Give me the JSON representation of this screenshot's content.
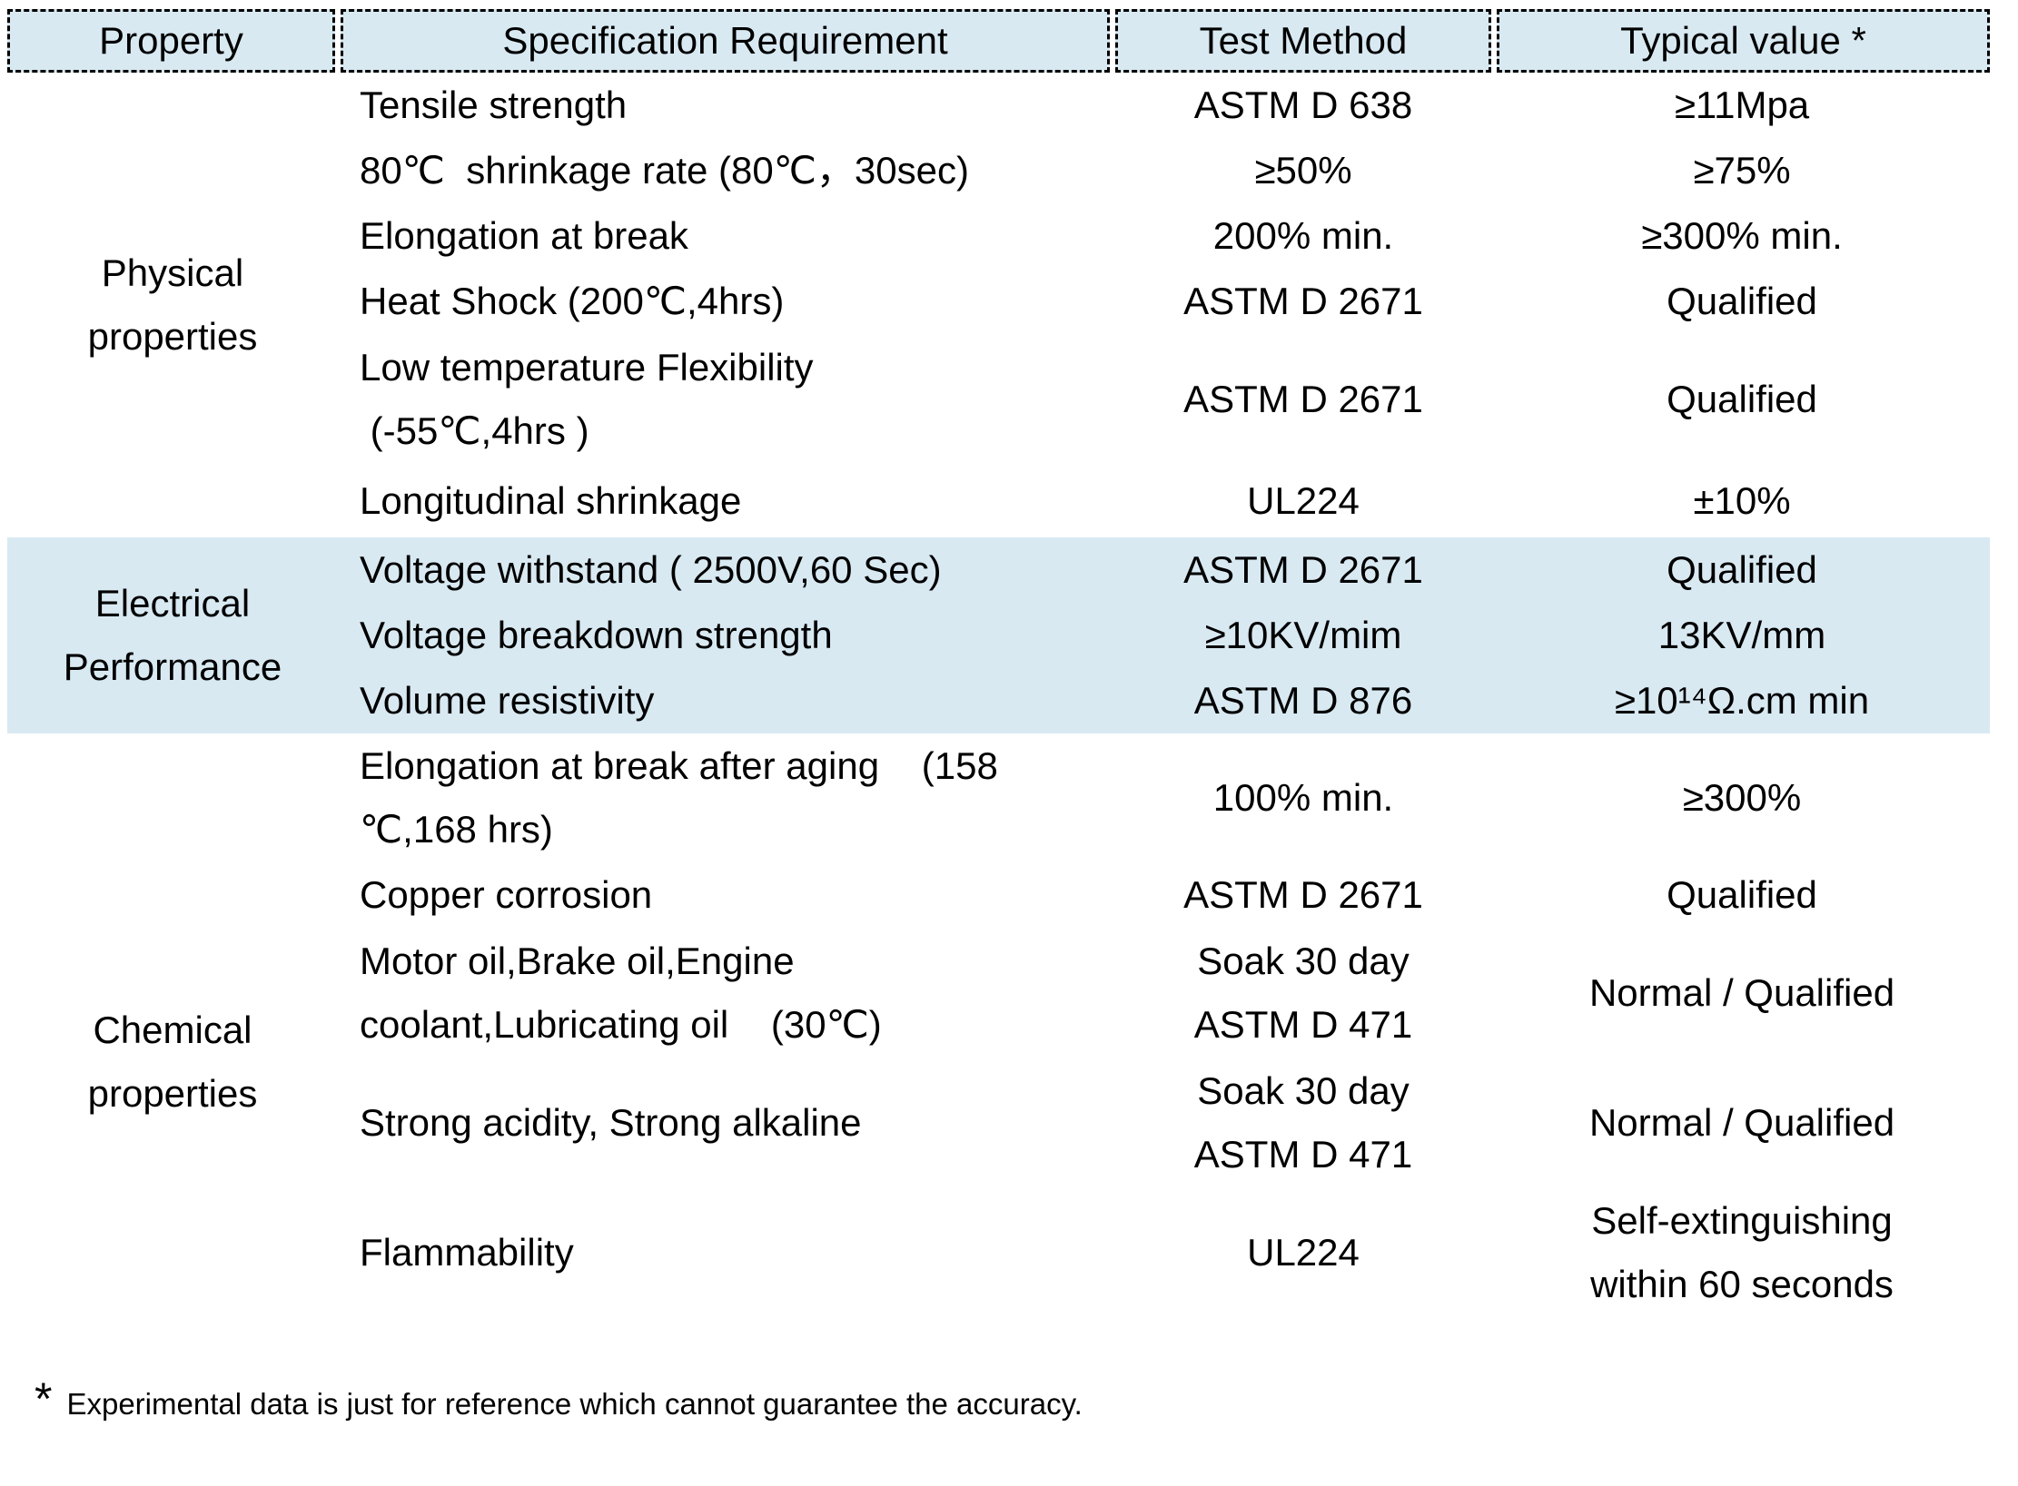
{
  "colors": {
    "accent_bg": "#d8e9f2",
    "border": "#000000",
    "text": "#000000"
  },
  "header": {
    "property": "Property",
    "spec": "Specification Requirement",
    "test": "Test Method",
    "typical": "Typical value *"
  },
  "sections": {
    "physical": {
      "label": "Physical\nproperties",
      "rows": [
        {
          "spec": "Tensile strength",
          "test": "ASTM D 638",
          "typical": "≥11Mpa"
        },
        {
          "spec": "80℃  shrinkage rate (80℃，30sec)",
          "test": "≥50%",
          "typical": "≥75%"
        },
        {
          "spec": "Elongation at break",
          "test": "200% min.",
          "typical": "≥300% min."
        },
        {
          "spec": "Heat Shock (200℃,4hrs)",
          "test": "ASTM D 2671",
          "typical": "Qualified"
        },
        {
          "spec": "Low temperature Flexibility\n (-55℃,4hrs )",
          "test": "ASTM D 2671",
          "typical": "Qualified"
        },
        {
          "spec": "Longitudinal shrinkage",
          "test": "UL224",
          "typical": "±10%"
        }
      ]
    },
    "electrical": {
      "label": "Electrical\nPerformance",
      "rows": [
        {
          "spec": "Voltage withstand ( 2500V,60 Sec)",
          "test": "ASTM D 2671",
          "typical": "Qualified"
        },
        {
          "spec": "Voltage breakdown strength",
          "test": "≥10KV/mim",
          "typical": "13KV/mm"
        },
        {
          "spec": "Volume resistivity",
          "test": "ASTM D 876",
          "typical": "≥10¹⁴Ω.cm min"
        }
      ]
    },
    "chemical": {
      "label": "Chemical\nproperties",
      "rows": [
        {
          "spec": "Elongation at break after aging    (158\n℃,168 hrs)",
          "test": "100% min.",
          "typical": "≥300%"
        },
        {
          "spec": "Copper corrosion",
          "test": "ASTM D 2671",
          "typical": "Qualified"
        },
        {
          "spec": "Motor oil,Brake oil,Engine\ncoolant,Lubricating oil    (30℃)",
          "test": "Soak 30 day\nASTM D 471",
          "typical": "Normal / Qualified"
        },
        {
          "spec": "Strong acidity, Strong alkaline",
          "test": "Soak 30 day\nASTM D 471",
          "typical": "Normal / Qualified"
        },
        {
          "spec": "Flammability",
          "test": "UL224",
          "typical": "Self-extinguishing\nwithin 60 seconds"
        }
      ]
    }
  },
  "footnote": {
    "marker": "*",
    "text": "Experimental data is just for reference which cannot guarantee the accuracy."
  }
}
